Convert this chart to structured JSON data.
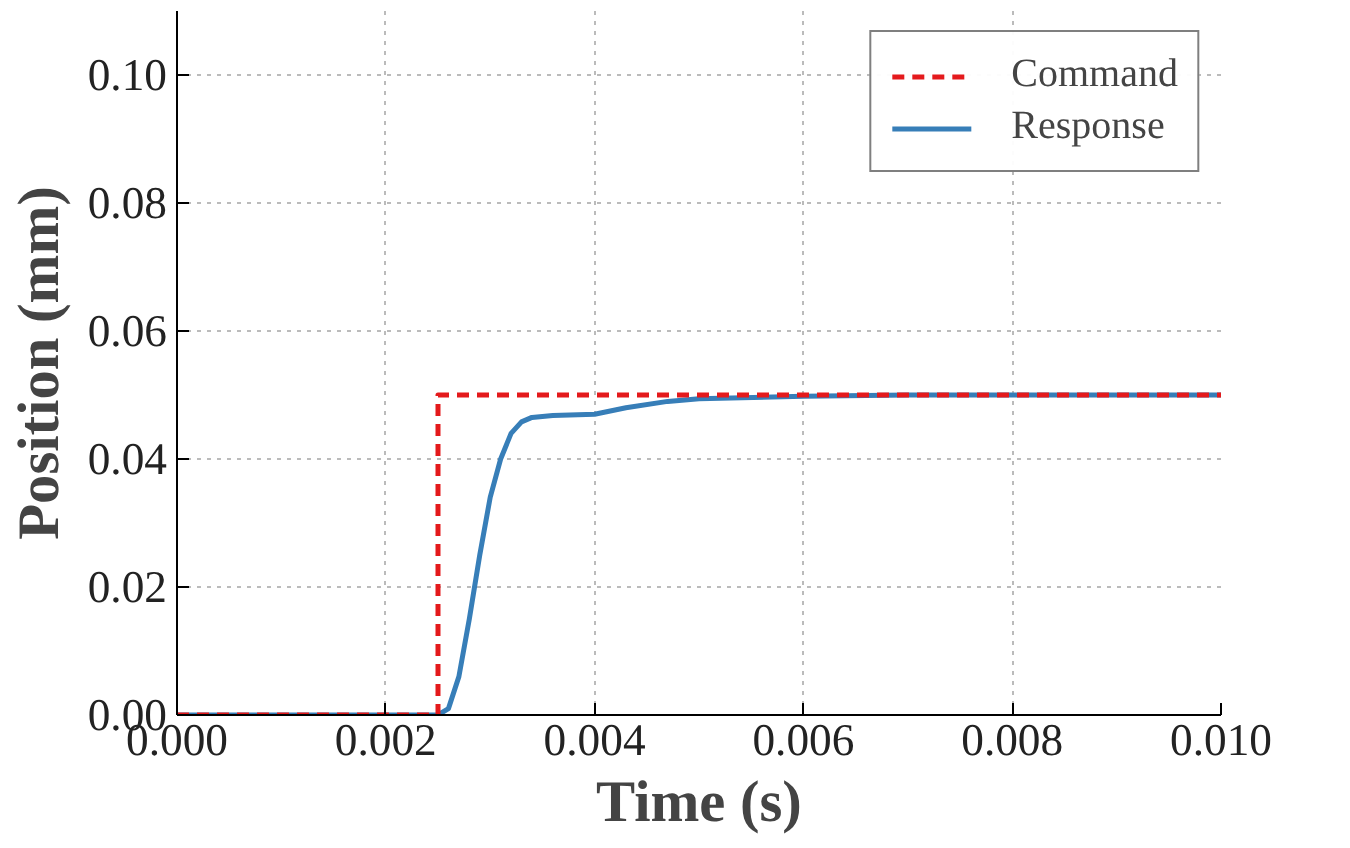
{
  "chart_data": {
    "type": "line",
    "xlabel": "Time (s)",
    "ylabel": "Position (mm)",
    "xlim": [
      0,
      0.01
    ],
    "ylim": [
      0,
      0.11
    ],
    "xticks": [
      {
        "value": 0,
        "label": "0.000"
      },
      {
        "value": 0.002,
        "label": "0.002"
      },
      {
        "value": 0.004,
        "label": "0.004"
      },
      {
        "value": 0.006,
        "label": "0.006"
      },
      {
        "value": 0.008,
        "label": "0.008"
      },
      {
        "value": 0.01,
        "label": "0.010"
      }
    ],
    "yticks": [
      {
        "value": 0,
        "label": "0.00"
      },
      {
        "value": 0.02,
        "label": "0.02"
      },
      {
        "value": 0.04,
        "label": "0.04"
      },
      {
        "value": 0.06,
        "label": "0.06"
      },
      {
        "value": 0.08,
        "label": "0.08"
      },
      {
        "value": 0.1,
        "label": "0.10"
      }
    ],
    "grid": true,
    "legend": "top right",
    "series": [
      {
        "name": "Command",
        "color": "#e41a1c",
        "line_style": "dashed",
        "x": [
          0,
          0.0025,
          0.0025,
          0.01
        ],
        "values": [
          0,
          0,
          0.05,
          0.05
        ]
      },
      {
        "name": "Response",
        "color": "#377eb8",
        "line_style": "solid",
        "x": [
          0,
          0.0025,
          0.0026,
          0.0027,
          0.0028,
          0.0029,
          0.003,
          0.0031,
          0.0032,
          0.0033,
          0.0034,
          0.0036,
          0.004,
          0.0043,
          0.0047,
          0.005,
          0.006,
          0.007,
          0.01
        ],
        "values": [
          0,
          0,
          0.001,
          0.006,
          0.015,
          0.025,
          0.034,
          0.04,
          0.044,
          0.0458,
          0.0465,
          0.0468,
          0.047,
          0.048,
          0.049,
          0.0494,
          0.0498,
          0.05,
          0.05
        ]
      }
    ]
  }
}
